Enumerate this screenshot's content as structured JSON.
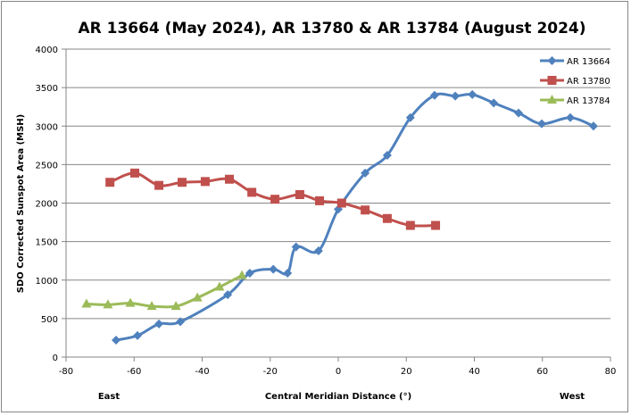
{
  "chart_data": {
    "type": "line",
    "title": "AR 13664 (May 2024), AR 13780 & AR 13784 (August 2024)",
    "xlabel": "Central Meridian Distance  (°)",
    "ylabel": "SDO Corrected Sunspot  Area (MSH)",
    "x_annotations": {
      "left": "East",
      "right": "West"
    },
    "xlim": [
      -80,
      80
    ],
    "ylim": [
      0,
      4000
    ],
    "xticks": [
      -80,
      -60,
      -40,
      -20,
      0,
      20,
      40,
      60,
      80
    ],
    "yticks": [
      0,
      500,
      1000,
      1500,
      2000,
      2500,
      3000,
      3500,
      4000
    ],
    "xtick_labels": [
      "-80",
      "-60",
      "-40",
      "-20",
      "0",
      "20",
      "40",
      "60",
      "80"
    ],
    "ytick_labels": [
      "0",
      "500",
      "1000",
      "1500",
      "2000",
      "2500",
      "3000",
      "3500",
      "4000"
    ],
    "grid": "horizontal",
    "legend_position": "top-right",
    "series": [
      {
        "name": "AR 13664",
        "color": "#4F81BD",
        "marker": "diamond",
        "x": [
          -65.3,
          -59.0,
          -52.7,
          -46.4,
          -32.5,
          -26.0,
          -19.1,
          -14.9,
          -12.4,
          -5.8,
          0.0,
          7.9,
          14.4,
          21.2,
          28.3,
          34.4,
          39.4,
          45.7,
          53.0,
          59.8,
          68.2,
          75.0
        ],
        "y": [
          220,
          280,
          430,
          460,
          810,
          1090,
          1140,
          1090,
          1430,
          1380,
          1920,
          2390,
          2620,
          3110,
          3400,
          3390,
          3410,
          3300,
          3170,
          3030,
          3110,
          3000
        ]
      },
      {
        "name": "AR 13780",
        "color": "#C0504D",
        "marker": "square",
        "x": [
          -67.1,
          -59.8,
          -52.7,
          -45.9,
          -39.1,
          -32.0,
          -25.4,
          -18.6,
          -11.3,
          -5.5,
          1.0,
          7.9,
          14.4,
          21.2,
          28.6
        ],
        "y": [
          2270,
          2390,
          2230,
          2270,
          2280,
          2310,
          2140,
          2050,
          2110,
          2030,
          2000,
          1910,
          1800,
          1710,
          1710
        ]
      },
      {
        "name": "AR 13784",
        "color": "#9BBB59",
        "marker": "triangle",
        "x": [
          -74.0,
          -67.7,
          -61.1,
          -54.8,
          -47.7,
          -41.4,
          -34.9,
          -28.3
        ],
        "y": [
          690,
          680,
          700,
          660,
          660,
          770,
          910,
          1060
        ]
      }
    ]
  }
}
